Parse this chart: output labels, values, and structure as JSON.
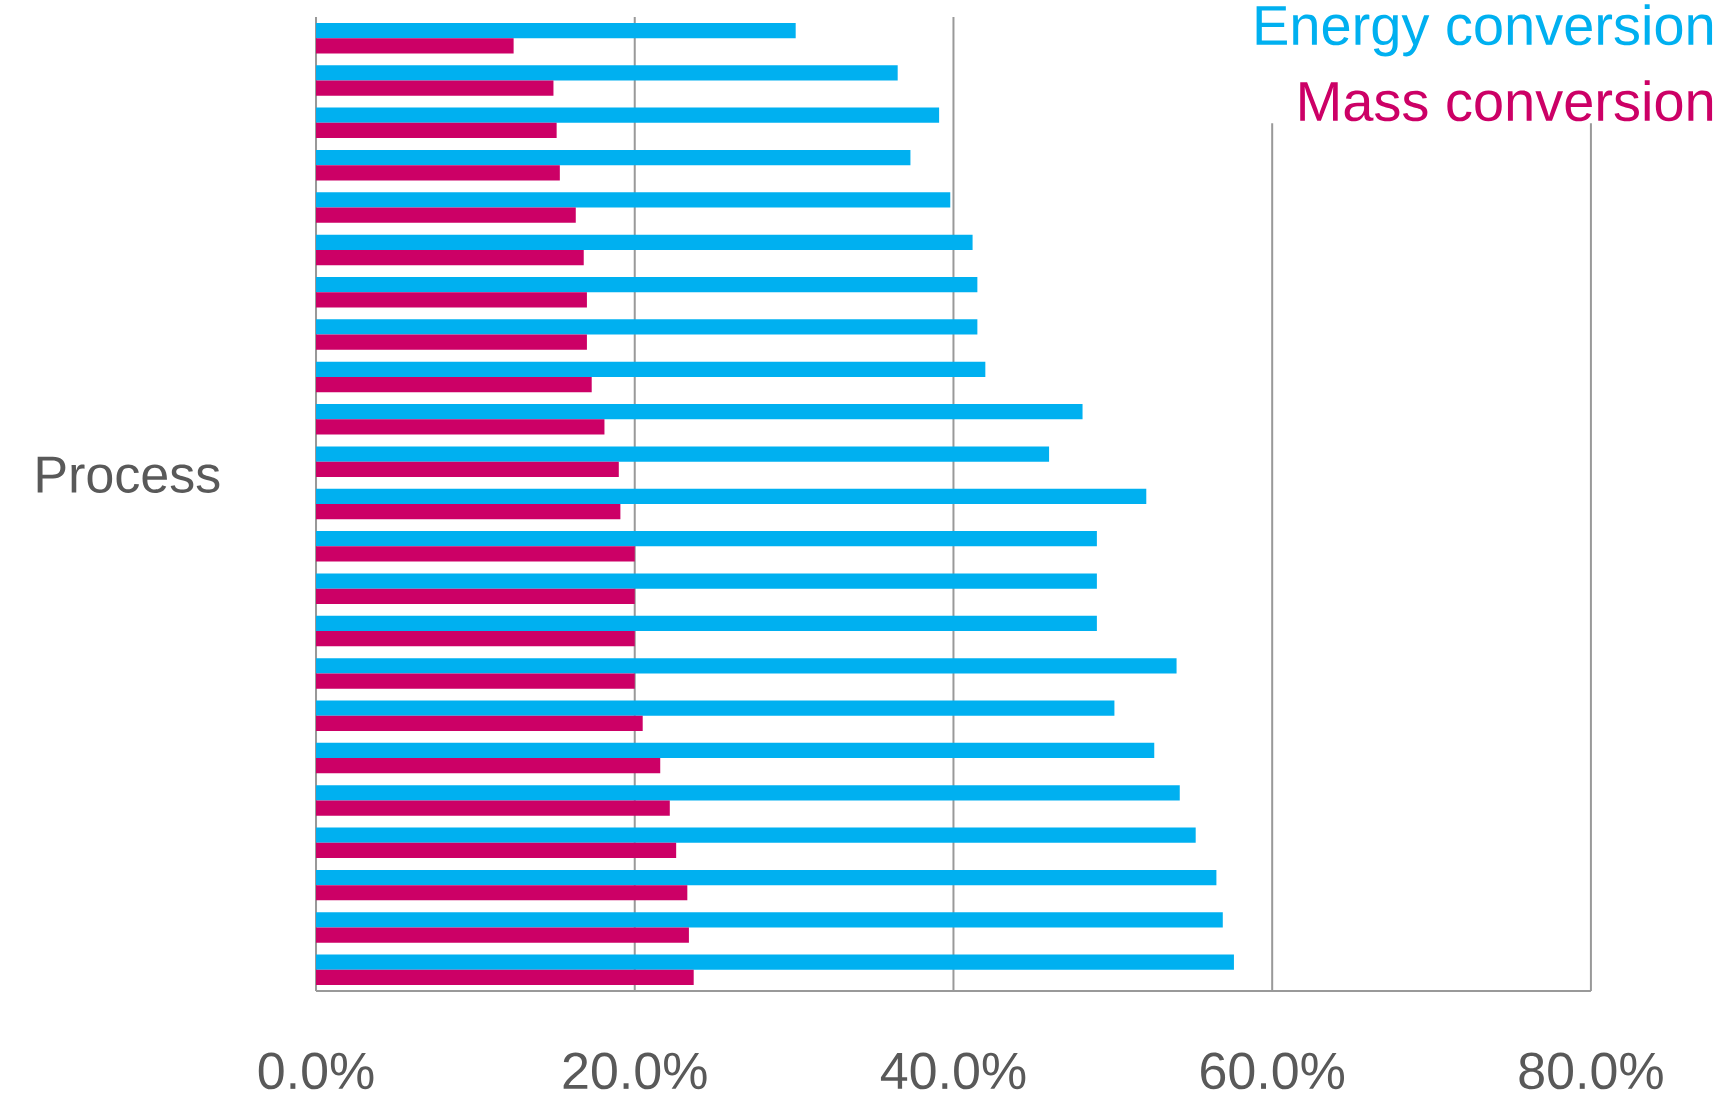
{
  "chart_data": {
    "type": "bar",
    "orientation": "horizontal",
    "ylabel": "Process",
    "categories": [
      null,
      null,
      null,
      null,
      null,
      null,
      null,
      null,
      null,
      null,
      null,
      null,
      null,
      null,
      null,
      null,
      null,
      null,
      null,
      null,
      null,
      null,
      null
    ],
    "series": [
      {
        "name": "Energy conversion",
        "color": "#00b0f0",
        "values": [
          30.1,
          36.5,
          39.1,
          37.3,
          39.8,
          41.2,
          41.5,
          41.5,
          42.0,
          48.1,
          46.0,
          52.1,
          49.0,
          49.0,
          49.0,
          54.0,
          50.1,
          52.6,
          54.2,
          55.2,
          56.5,
          56.9,
          57.6
        ]
      },
      {
        "name": "Mass conversion",
        "color": "#cc0066",
        "values": [
          12.4,
          14.9,
          15.1,
          15.3,
          16.3,
          16.8,
          17.0,
          17.0,
          17.3,
          18.1,
          19.0,
          19.1,
          20.0,
          20.0,
          20.0,
          20.0,
          20.5,
          21.6,
          22.2,
          22.6,
          23.3,
          23.4,
          23.7
        ]
      }
    ],
    "xlim": [
      0,
      80
    ],
    "xticks": [
      {
        "value": 0,
        "label": "0.0%"
      },
      {
        "value": 20,
        "label": "20.0%"
      },
      {
        "value": 40,
        "label": "40.0%"
      },
      {
        "value": 60,
        "label": "60.0%"
      },
      {
        "value": 80,
        "label": "80.0%"
      }
    ],
    "grid": "x",
    "legend": "top right"
  }
}
